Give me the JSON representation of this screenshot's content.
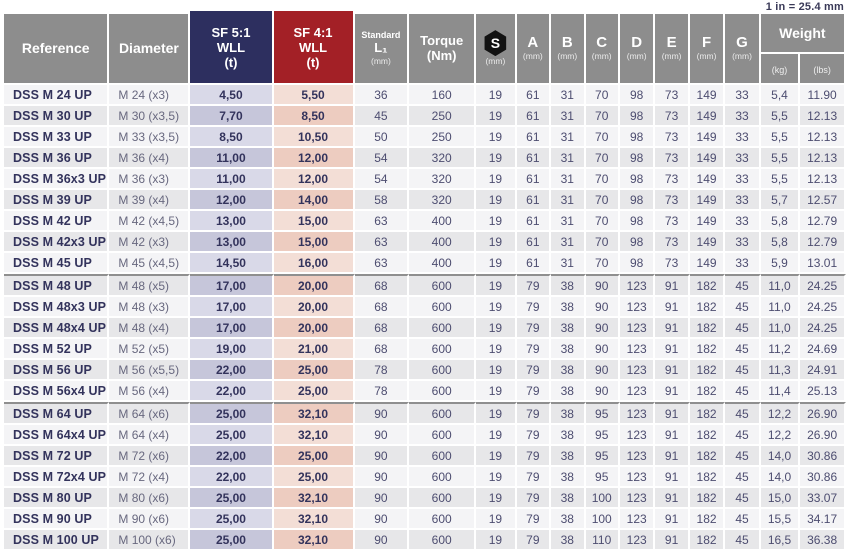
{
  "note": "1 in = 25.4 mm",
  "colors": {
    "header_gray": "#8d8d8d",
    "sf5_navy": "#2d2f5f",
    "sf4_red": "#a32026",
    "row_light": "#f4f4f6",
    "row_dark": "#e7e7e9",
    "sf5_cell_light": "#d9d9e8",
    "sf5_cell_dark": "#c6c6da",
    "sf4_cell_light": "#f3ded6",
    "sf4_cell_dark": "#edccc0",
    "text_navy": "#33335c",
    "divider": "#8f8f8f"
  },
  "header": {
    "reference": "Reference",
    "diameter": "Diameter",
    "sf5": {
      "line1": "SF 5:1",
      "line2": "WLL",
      "line3": "(t)"
    },
    "sf4": {
      "line1": "SF 4:1",
      "line2": "WLL",
      "line3": "(t)"
    },
    "l1": {
      "line1": "Standard",
      "line2": "L₁",
      "line3": "(mm)"
    },
    "torque": {
      "line1": "Torque",
      "line2": "(Nm)"
    },
    "s": {
      "letter": "S",
      "unit": "(mm)",
      "icon": "hex-nut-icon"
    },
    "dims": [
      {
        "letter": "A",
        "unit": "(mm)"
      },
      {
        "letter": "B",
        "unit": "(mm)"
      },
      {
        "letter": "C",
        "unit": "(mm)"
      },
      {
        "letter": "D",
        "unit": "(mm)"
      },
      {
        "letter": "E",
        "unit": "(mm)"
      },
      {
        "letter": "F",
        "unit": "(mm)"
      },
      {
        "letter": "G",
        "unit": "(mm)"
      }
    ],
    "weight": {
      "label": "Weight",
      "kg": "(kg)",
      "lbs": "(lbs)"
    }
  },
  "table": {
    "groups": [
      {
        "rows": [
          [
            "DSS M 24 UP",
            "M 24 (x3)",
            "4,50",
            "5,50",
            "36",
            "160",
            "19",
            "61",
            "31",
            "70",
            "98",
            "73",
            "149",
            "33",
            "5,4",
            "11.90"
          ],
          [
            "DSS M 30 UP",
            "M 30 (x3,5)",
            "7,70",
            "8,50",
            "45",
            "250",
            "19",
            "61",
            "31",
            "70",
            "98",
            "73",
            "149",
            "33",
            "5,5",
            "12.13"
          ],
          [
            "DSS M 33 UP",
            "M 33 (x3,5)",
            "8,50",
            "10,50",
            "50",
            "250",
            "19",
            "61",
            "31",
            "70",
            "98",
            "73",
            "149",
            "33",
            "5,5",
            "12.13"
          ],
          [
            "DSS M 36 UP",
            "M 36 (x4)",
            "11,00",
            "12,00",
            "54",
            "320",
            "19",
            "61",
            "31",
            "70",
            "98",
            "73",
            "149",
            "33",
            "5,5",
            "12.13"
          ],
          [
            "DSS M 36x3 UP",
            "M 36 (x3)",
            "11,00",
            "12,00",
            "54",
            "320",
            "19",
            "61",
            "31",
            "70",
            "98",
            "73",
            "149",
            "33",
            "5,5",
            "12.13"
          ],
          [
            "DSS M 39 UP",
            "M 39 (x4)",
            "12,00",
            "14,00",
            "58",
            "320",
            "19",
            "61",
            "31",
            "70",
            "98",
            "73",
            "149",
            "33",
            "5,7",
            "12.57"
          ],
          [
            "DSS M 42 UP",
            "M 42 (x4,5)",
            "13,00",
            "15,00",
            "63",
            "400",
            "19",
            "61",
            "31",
            "70",
            "98",
            "73",
            "149",
            "33",
            "5,8",
            "12.79"
          ],
          [
            "DSS M 42x3 UP",
            "M 42 (x3)",
            "13,00",
            "15,00",
            "63",
            "400",
            "19",
            "61",
            "31",
            "70",
            "98",
            "73",
            "149",
            "33",
            "5,8",
            "12.79"
          ],
          [
            "DSS M 45 UP",
            "M 45 (x4,5)",
            "14,50",
            "16,00",
            "63",
            "400",
            "19",
            "61",
            "31",
            "70",
            "98",
            "73",
            "149",
            "33",
            "5,9",
            "13.01"
          ]
        ]
      },
      {
        "rows": [
          [
            "DSS M 48 UP",
            "M 48 (x5)",
            "17,00",
            "20,00",
            "68",
            "600",
            "19",
            "79",
            "38",
            "90",
            "123",
            "91",
            "182",
            "45",
            "11,0",
            "24.25"
          ],
          [
            "DSS M 48x3 UP",
            "M 48 (x3)",
            "17,00",
            "20,00",
            "68",
            "600",
            "19",
            "79",
            "38",
            "90",
            "123",
            "91",
            "182",
            "45",
            "11,0",
            "24.25"
          ],
          [
            "DSS M 48x4 UP",
            "M 48 (x4)",
            "17,00",
            "20,00",
            "68",
            "600",
            "19",
            "79",
            "38",
            "90",
            "123",
            "91",
            "182",
            "45",
            "11,0",
            "24.25"
          ],
          [
            "DSS M 52 UP",
            "M 52 (x5)",
            "19,00",
            "21,00",
            "68",
            "600",
            "19",
            "79",
            "38",
            "90",
            "123",
            "91",
            "182",
            "45",
            "11,2",
            "24.69"
          ],
          [
            "DSS M 56 UP",
            "M 56 (x5,5)",
            "22,00",
            "25,00",
            "78",
            "600",
            "19",
            "79",
            "38",
            "90",
            "123",
            "91",
            "182",
            "45",
            "11,3",
            "24.91"
          ],
          [
            "DSS M 56x4 UP",
            "M 56 (x4)",
            "22,00",
            "25,00",
            "78",
            "600",
            "19",
            "79",
            "38",
            "90",
            "123",
            "91",
            "182",
            "45",
            "11,4",
            "25.13"
          ]
        ]
      },
      {
        "rows": [
          [
            "DSS M 64 UP",
            "M 64 (x6)",
            "25,00",
            "32,10",
            "90",
            "600",
            "19",
            "79",
            "38",
            "95",
            "123",
            "91",
            "182",
            "45",
            "12,2",
            "26.90"
          ],
          [
            "DSS M 64x4 UP",
            "M 64 (x4)",
            "25,00",
            "32,10",
            "90",
            "600",
            "19",
            "79",
            "38",
            "95",
            "123",
            "91",
            "182",
            "45",
            "12,2",
            "26.90"
          ],
          [
            "DSS M 72 UP",
            "M 72 (x6)",
            "22,00",
            "25,00",
            "90",
            "600",
            "19",
            "79",
            "38",
            "95",
            "123",
            "91",
            "182",
            "45",
            "14,0",
            "30.86"
          ],
          [
            "DSS M 72x4 UP",
            "M 72 (x4)",
            "22,00",
            "25,00",
            "90",
            "600",
            "19",
            "79",
            "38",
            "95",
            "123",
            "91",
            "182",
            "45",
            "14,0",
            "30.86"
          ],
          [
            "DSS M 80 UP",
            "M 80 (x6)",
            "25,00",
            "32,10",
            "90",
            "600",
            "19",
            "79",
            "38",
            "100",
            "123",
            "91",
            "182",
            "45",
            "15,0",
            "33.07"
          ],
          [
            "DSS M 90 UP",
            "M 90 (x6)",
            "25,00",
            "32,10",
            "90",
            "600",
            "19",
            "79",
            "38",
            "100",
            "123",
            "91",
            "182",
            "45",
            "15,5",
            "34.17"
          ],
          [
            "DSS M 100 UP",
            "M 100 (x6)",
            "25,00",
            "32,10",
            "90",
            "600",
            "19",
            "79",
            "38",
            "110",
            "123",
            "91",
            "182",
            "45",
            "16,5",
            "36.38"
          ]
        ]
      }
    ]
  }
}
